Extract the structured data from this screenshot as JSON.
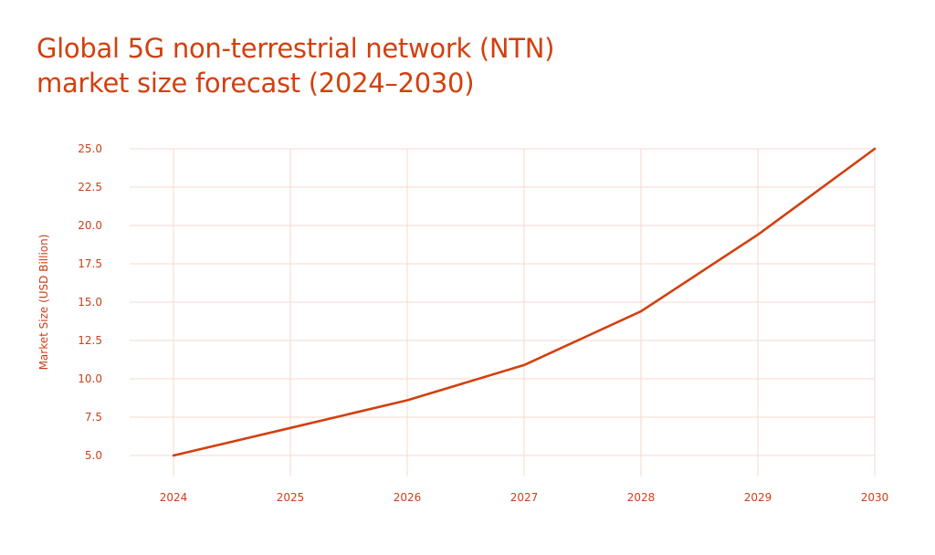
{
  "title_lines": [
    "Global 5G non-terrestrial network (NTN)",
    "market size forecast (2024–2030)"
  ],
  "colors": {
    "accent": "#D2400E",
    "grid": "#F6D9CF",
    "text": "#C9411A"
  },
  "chart_data": {
    "type": "line",
    "title": "Global 5G non-terrestrial network (NTN) market size forecast (2024–2030)",
    "xlabel": "",
    "ylabel": "Market Size (USD Billion)",
    "x": [
      "2024",
      "2025",
      "2026",
      "2027",
      "2028",
      "2029",
      "2030"
    ],
    "yticks": [
      "5.0",
      "7.5",
      "10.0",
      "12.5",
      "15.0",
      "17.5",
      "20.0",
      "22.5",
      "25.0"
    ],
    "ylim": [
      5,
      25
    ],
    "series": [
      {
        "values": [
          5.0,
          6.8,
          8.6,
          10.9,
          14.4,
          19.4,
          25.0
        ]
      }
    ],
    "grid": true,
    "legend": "none"
  }
}
